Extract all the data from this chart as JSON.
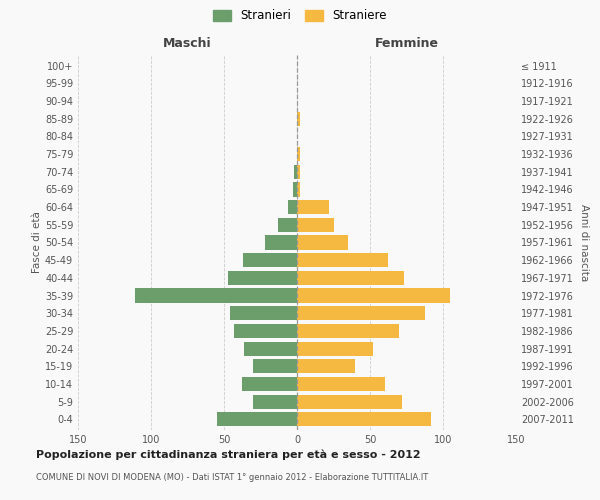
{
  "age_groups": [
    "0-4",
    "5-9",
    "10-14",
    "15-19",
    "20-24",
    "25-29",
    "30-34",
    "35-39",
    "40-44",
    "45-49",
    "50-54",
    "55-59",
    "60-64",
    "65-69",
    "70-74",
    "75-79",
    "80-84",
    "85-89",
    "90-94",
    "95-99",
    "100+"
  ],
  "birth_years": [
    "2007-2011",
    "2002-2006",
    "1997-2001",
    "1992-1996",
    "1987-1991",
    "1982-1986",
    "1977-1981",
    "1972-1976",
    "1967-1971",
    "1962-1966",
    "1957-1961",
    "1952-1956",
    "1947-1951",
    "1942-1946",
    "1937-1941",
    "1932-1936",
    "1927-1931",
    "1922-1926",
    "1917-1921",
    "1912-1916",
    "≤ 1911"
  ],
  "maschi": [
    55,
    30,
    38,
    30,
    36,
    43,
    46,
    111,
    47,
    37,
    22,
    13,
    6,
    3,
    2,
    0,
    0,
    0,
    0,
    0,
    0
  ],
  "femmine": [
    92,
    72,
    60,
    40,
    52,
    70,
    88,
    105,
    73,
    62,
    35,
    25,
    22,
    2,
    2,
    2,
    0,
    2,
    0,
    0,
    0
  ],
  "male_color": "#6b9e6b",
  "female_color": "#f5b942",
  "background_color": "#f9f9f9",
  "grid_color": "#cccccc",
  "xlim": 150,
  "title": "Popolazione per cittadinanza straniera per età e sesso - 2012",
  "subtitle": "COMUNE DI NOVI DI MODENA (MO) - Dati ISTAT 1° gennaio 2012 - Elaborazione TUTTITALIA.IT",
  "xlabel_left": "Maschi",
  "xlabel_right": "Femmine",
  "ylabel_left": "Fasce di età",
  "ylabel_right": "Anni di nascita",
  "legend_stranieri": "Stranieri",
  "legend_straniere": "Straniere"
}
